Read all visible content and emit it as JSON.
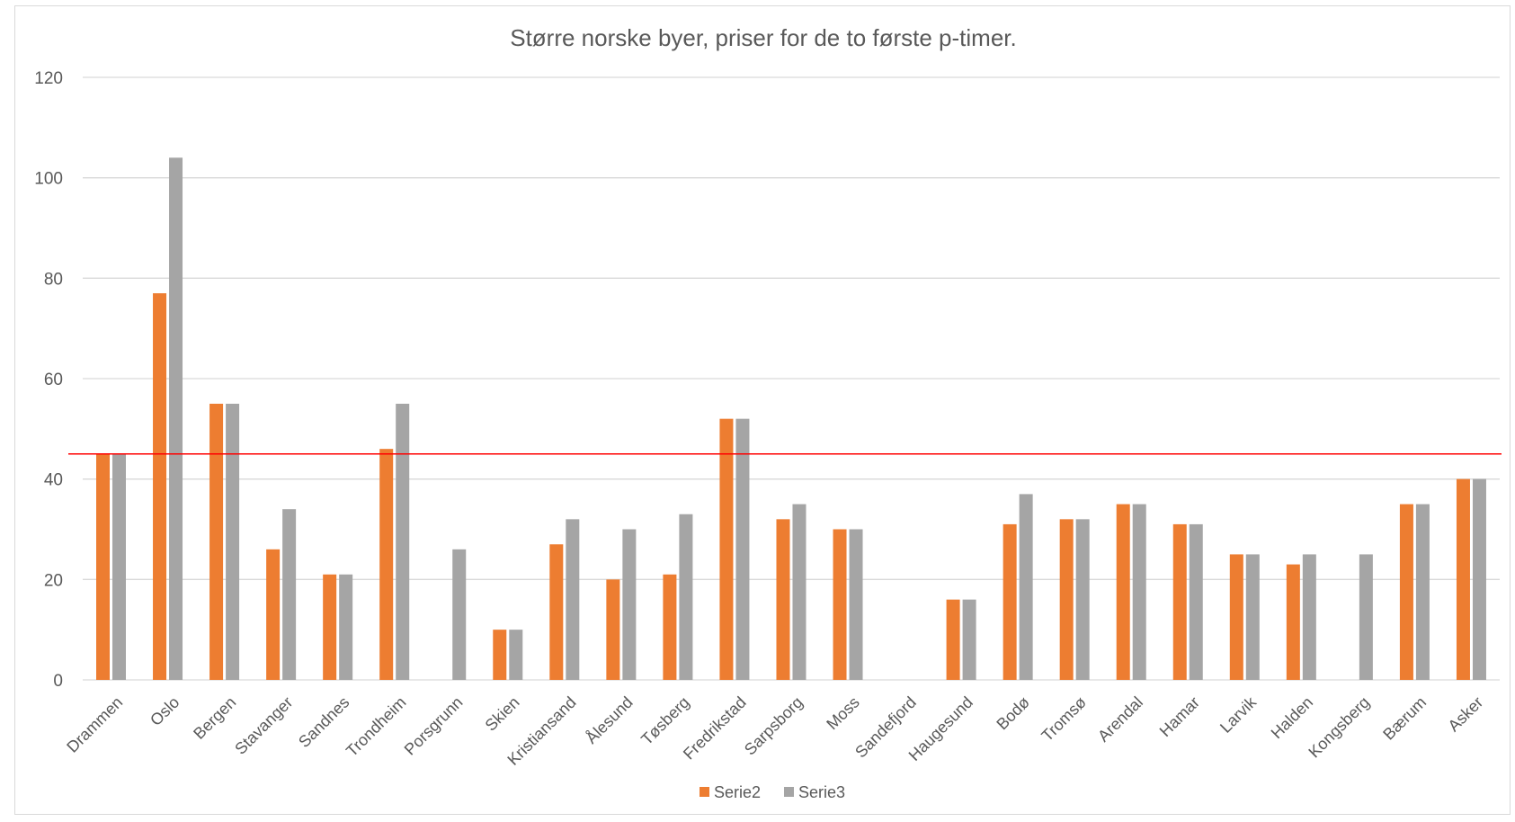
{
  "chart_data": {
    "type": "bar",
    "title": "Større norske byer, priser for de to første p-timer.",
    "xlabel": "",
    "ylabel": "",
    "ylim": [
      0,
      120
    ],
    "yticks": [
      0,
      20,
      40,
      60,
      80,
      100,
      120
    ],
    "grid": true,
    "legend_position": "bottom",
    "categories": [
      "Drammen",
      "Oslo",
      "Bergen",
      "Stavanger",
      "Sandnes",
      "Trondheim",
      "Porsgrunn",
      "Skien",
      "Kristiansand",
      "Ålesund",
      "Tøsberg",
      "Fredrikstad",
      "Sarpsborg",
      "Moss",
      "Sandefjord",
      "Haugesund",
      "Bodø",
      "Tromsø",
      "Arendal",
      "Hamar",
      "Larvik",
      "Halden",
      "Kongsberg",
      "Bærum",
      "Asker"
    ],
    "series": [
      {
        "name": "Serie2",
        "color": "#ed7d31",
        "values": [
          45,
          77,
          55,
          26,
          21,
          46,
          null,
          10,
          27,
          20,
          21,
          52,
          32,
          30,
          null,
          16,
          31,
          32,
          35,
          31,
          25,
          23,
          null,
          35,
          40
        ]
      },
      {
        "name": "Serie3",
        "color": "#a5a5a5",
        "values": [
          45,
          104,
          55,
          34,
          21,
          55,
          26,
          10,
          32,
          30,
          33,
          52,
          35,
          30,
          null,
          16,
          37,
          32,
          35,
          31,
          25,
          25,
          25,
          35,
          40
        ]
      }
    ],
    "reference_line": {
      "value": 45,
      "color": "#ff0000"
    }
  }
}
